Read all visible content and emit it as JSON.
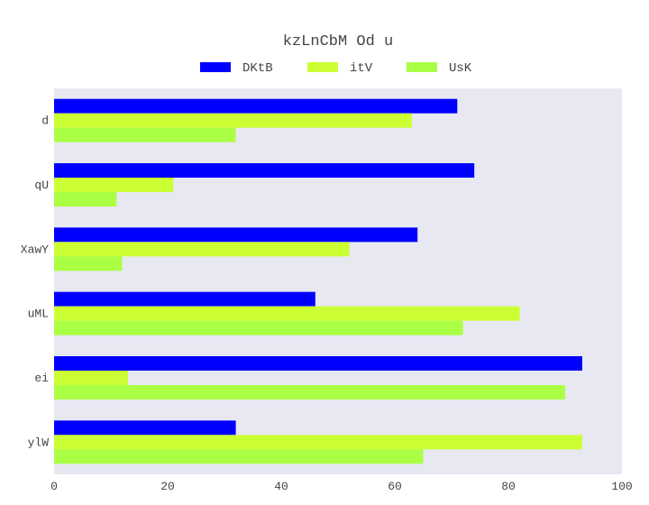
{
  "chart_data": {
    "type": "bar",
    "orientation": "horizontal",
    "title": "kzLnCbM  Od u",
    "categories": [
      "d",
      "qU",
      "XawY",
      "uML",
      "ei",
      "ylW"
    ],
    "series": [
      {
        "name": "DKtB",
        "color": "#0000ff",
        "values": [
          71,
          74,
          64,
          46,
          93,
          32
        ]
      },
      {
        "name": "itV",
        "color": "#ccff33",
        "values": [
          63,
          21,
          52,
          82,
          13,
          93
        ]
      },
      {
        "name": "UsK",
        "color": "#aaff44",
        "values": [
          32,
          11,
          12,
          72,
          90,
          65
        ]
      }
    ],
    "xlim": [
      0,
      100
    ],
    "xticks": [
      0,
      20,
      40,
      60,
      80,
      100
    ],
    "xlabel": "",
    "ylabel": "",
    "grid": false,
    "legend_position": "top-center",
    "plot_background": "#e8e8f2"
  }
}
